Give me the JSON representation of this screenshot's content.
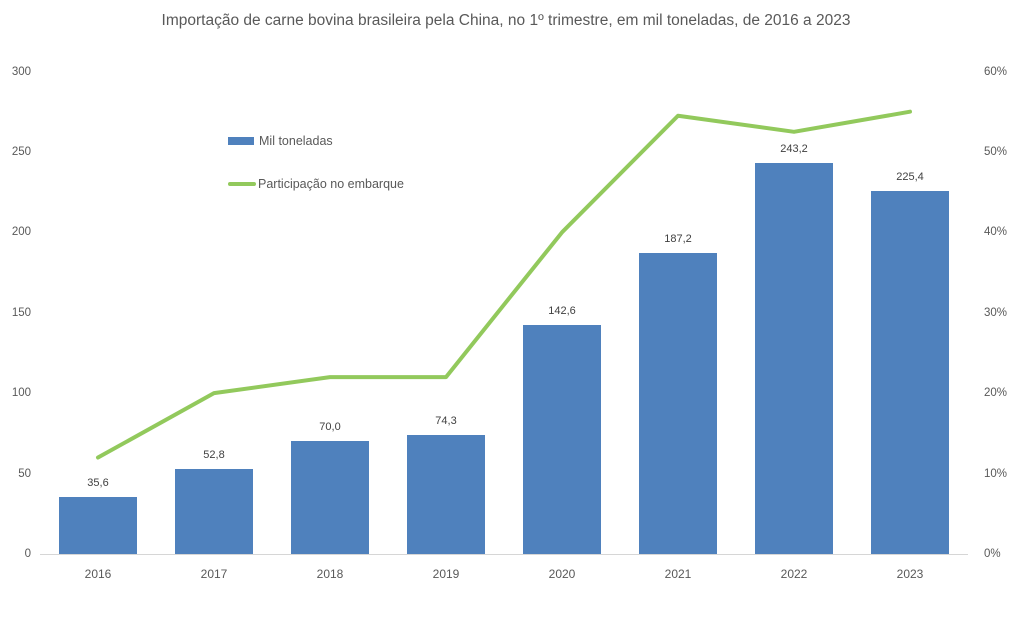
{
  "chart_data": {
    "type": "bar",
    "subtype": "bar+line combo, dual axis",
    "title": "Importação de carne bovina brasileira pela China, no 1º trimestre, em mil toneladas, de 2016 a 2023",
    "categories": [
      "2016",
      "2017",
      "2018",
      "2019",
      "2020",
      "2021",
      "2022",
      "2023"
    ],
    "series": [
      {
        "name": "Mil toneladas",
        "type": "bar",
        "axis": "left",
        "color": "#4f81bd",
        "values": [
          35.6,
          52.8,
          70.0,
          74.3,
          142.6,
          187.2,
          243.2,
          225.4
        ],
        "value_labels": [
          "35,6",
          "52,8",
          "70,0",
          "74,3",
          "142,6",
          "187,2",
          "243,2",
          "225,4"
        ]
      },
      {
        "name": "Participação no embarque",
        "type": "line",
        "axis": "right",
        "color": "#92c95c",
        "values": [
          12,
          20,
          22,
          22,
          40,
          54.5,
          52.5,
          55
        ]
      }
    ],
    "left_axis": {
      "min": 0,
      "max": 300,
      "tick_labels": [
        "300",
        "250",
        "200",
        "150",
        "100",
        "50",
        "0"
      ]
    },
    "right_axis": {
      "min": 0,
      "max": 60,
      "tick_labels": [
        "60%",
        "50%",
        "40%",
        "30%",
        "20%",
        "10%",
        "0%"
      ]
    },
    "legend_position": "inside-top-left",
    "grid": false
  },
  "colors": {
    "background": "#ffffff",
    "bar": "#4f81bd",
    "line": "#92c95c",
    "title_text": "#595959",
    "axis_text": "#595959",
    "value_label_text": "#404040",
    "axis_line": "#d6d6d6"
  }
}
